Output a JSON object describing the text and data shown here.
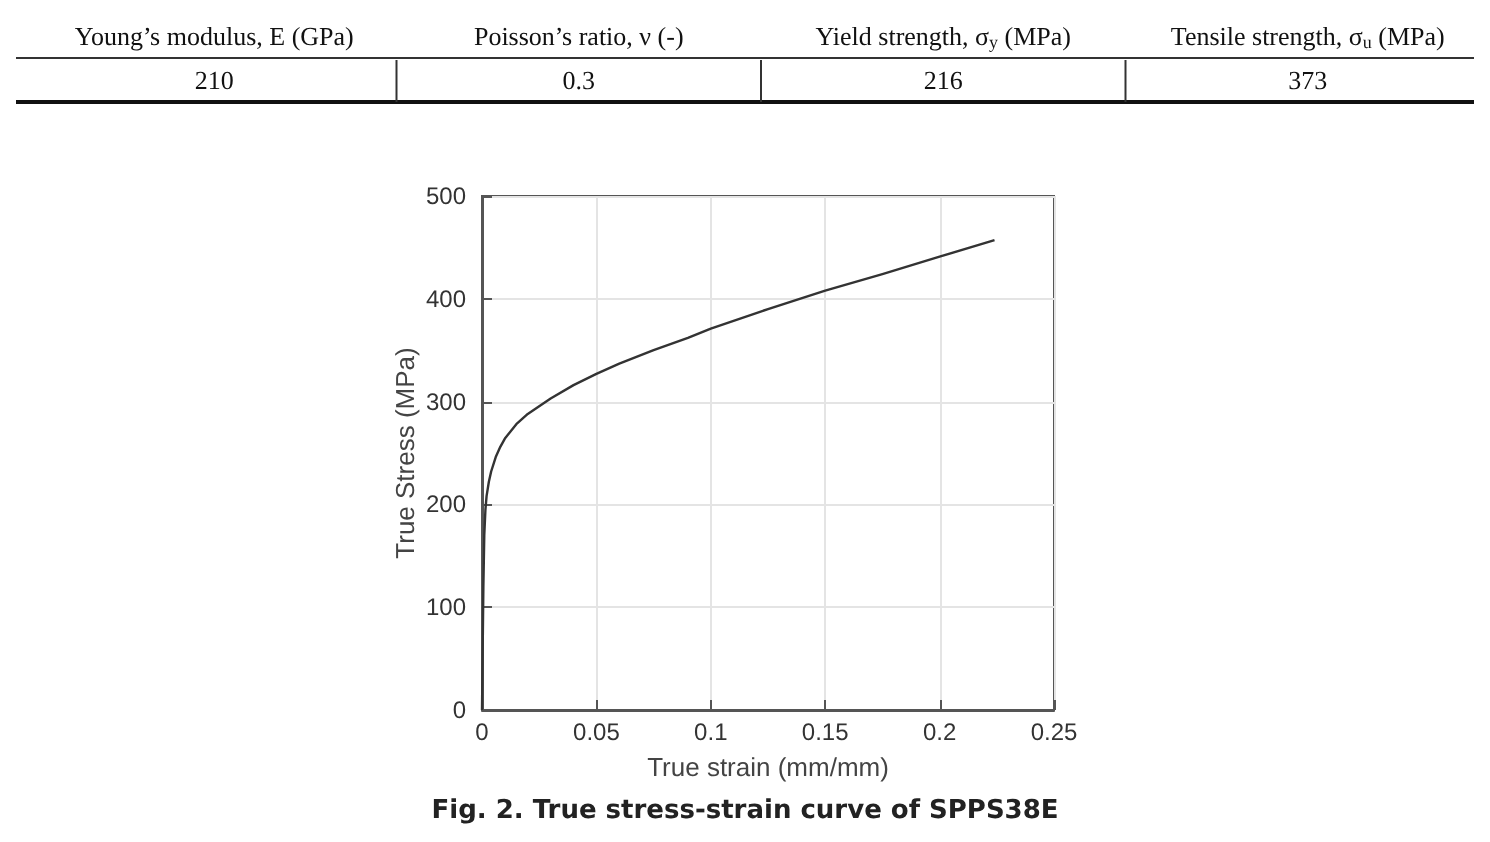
{
  "chart_data": {
    "type": "line",
    "title": "Fig. 2. True stress-strain curve of SPPS38E",
    "xlabel": "True strain (mm/mm)",
    "ylabel": "True Stress (MPa)",
    "annotations": [
      "Young’s modulus, E (GPa)",
      "Poisson’s ratio, ν (-)",
      "Yield strength, σ$_{y}$ (MPa)",
      "Tensile strength, σ$_{u}$ (MPa)",
      "210",
      "0.3",
      "216",
      "373"
    ],
    "x": [
      0,
      0.0003,
      0.0006,
      0.001,
      0.0015,
      0.002,
      0.003,
      0.004,
      0.006,
      0.008,
      0.01,
      0.015,
      0.02,
      0.03,
      0.04,
      0.05,
      0.06,
      0.075,
      0.09,
      0.1,
      0.125,
      0.15,
      0.175,
      0.2,
      0.224
    ],
    "series": [
      {
        "color": "#333333",
        "values": [
          0,
          60,
          120,
          170,
          195,
          208,
          222,
          232,
          246,
          256,
          264,
          278,
          288,
          303,
          316,
          327,
          337,
          350,
          362,
          371,
          390,
          408,
          424,
          441,
          457
        ]
      }
    ],
    "xlim": [
      0,
      0.25
    ],
    "xticks": [
      0,
      0.05,
      0.1,
      0.15,
      0.2,
      0.25
    ],
    "ylim": [
      0,
      500
    ],
    "yticks": [
      0,
      100,
      200,
      300,
      400,
      500
    ],
    "grid": true,
    "marker": "none",
    "line_style": "solid"
  }
}
